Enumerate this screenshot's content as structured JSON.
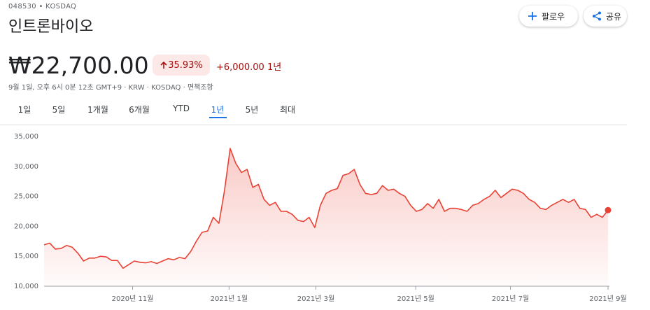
{
  "header": {
    "ticker": "048530 • KOSDAQ",
    "name": "인트론바이오",
    "follow": "팔로우",
    "share": "공유"
  },
  "quote": {
    "price": "₩22,700.00",
    "change_percent": "35.93%",
    "change": "+6,000.00",
    "period": "1년",
    "meta": "9월 1일, 오후 6시 0분 12초 GMT+9 · KRW · KOSDAQ · 면책조항"
  },
  "tabs": {
    "items": [
      "1일",
      "5일",
      "1개월",
      "6개월",
      "YTD",
      "1년",
      "5년",
      "최대"
    ],
    "selected": 5
  },
  "chart_data": {
    "type": "area",
    "color": "#e94235",
    "values": [
      16900,
      17200,
      16200,
      16300,
      16800,
      16500,
      15500,
      14200,
      14700,
      14700,
      15000,
      14900,
      14300,
      14300,
      13000,
      13600,
      14200,
      14000,
      13900,
      14100,
      13800,
      14200,
      14600,
      14400,
      14800,
      14600,
      15800,
      17500,
      19000,
      19200,
      21500,
      20500,
      26000,
      33000,
      30500,
      29000,
      29500,
      26500,
      27000,
      24500,
      23500,
      24000,
      22500,
      22500,
      22000,
      21000,
      20800,
      21500,
      19800,
      23500,
      25500,
      26000,
      26300,
      28500,
      28800,
      29500,
      27000,
      25500,
      25300,
      25500,
      26800,
      26000,
      26200,
      25500,
      25000,
      23500,
      22500,
      22800,
      23800,
      23000,
      24500,
      22500,
      23000,
      23000,
      22800,
      22500,
      23500,
      23800,
      24500,
      25000,
      26000,
      24800,
      25500,
      26200,
      26000,
      25500,
      24500,
      24000,
      23000,
      22800,
      23500,
      24000,
      24500,
      24000,
      24500,
      23000,
      22800,
      21500,
      22000,
      21500,
      22700
    ],
    "xlim": [
      0,
      100
    ],
    "xticks": [
      {
        "value": 15.7,
        "label": "2020년 11월"
      },
      {
        "value": 32.8,
        "label": "2021년 1월"
      },
      {
        "value": 48.2,
        "label": "2021년 3월"
      },
      {
        "value": 65.9,
        "label": "2021년 5월"
      },
      {
        "value": 82.7,
        "label": "2021년 7월"
      },
      {
        "value": 100,
        "label": "2021년 9월"
      }
    ],
    "ylim": [
      10000,
      35000
    ],
    "yticks": [
      {
        "value": 10000,
        "label": "10,000"
      },
      {
        "value": 15000,
        "label": "15,000"
      },
      {
        "value": 20000,
        "label": "20,000"
      },
      {
        "value": 25000,
        "label": "25,000"
      },
      {
        "value": 30000,
        "label": "30,000"
      },
      {
        "value": 35000,
        "label": "35,000"
      }
    ]
  }
}
